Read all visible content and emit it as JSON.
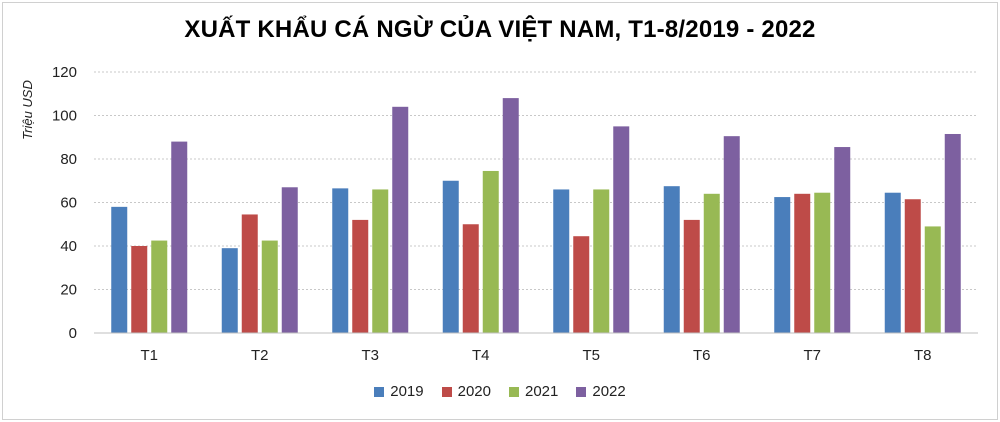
{
  "chart_data": {
    "type": "bar",
    "title": "XUẤT KHẨU CÁ NGỪ CỦA VIỆT NAM, T1-8/2019 - 2022",
    "ylabel": "Triệu USD",
    "xlabel": "",
    "ylim": [
      0,
      120
    ],
    "yticks": [
      "0",
      "20",
      "40",
      "60",
      "80",
      "100",
      "120"
    ],
    "categories": [
      "T1",
      "T2",
      "T3",
      "T4",
      "T5",
      "T6",
      "T7",
      "T8"
    ],
    "series": [
      {
        "name": "2019",
        "color": "#4a7ebb",
        "values": [
          58,
          39,
          66.5,
          70,
          66,
          67.5,
          62.5,
          64.5
        ]
      },
      {
        "name": "2020",
        "color": "#be4b48",
        "values": [
          40,
          54.5,
          52,
          50,
          44.5,
          52,
          64,
          61.5
        ]
      },
      {
        "name": "2021",
        "color": "#98b954",
        "values": [
          42.5,
          42.5,
          66,
          74.5,
          66,
          64,
          64.5,
          49
        ]
      },
      {
        "name": "2022",
        "color": "#7d60a0",
        "values": [
          88,
          67,
          104,
          108,
          95,
          90.5,
          85.5,
          91.5
        ]
      }
    ],
    "grid": true,
    "legend": "bottom"
  }
}
